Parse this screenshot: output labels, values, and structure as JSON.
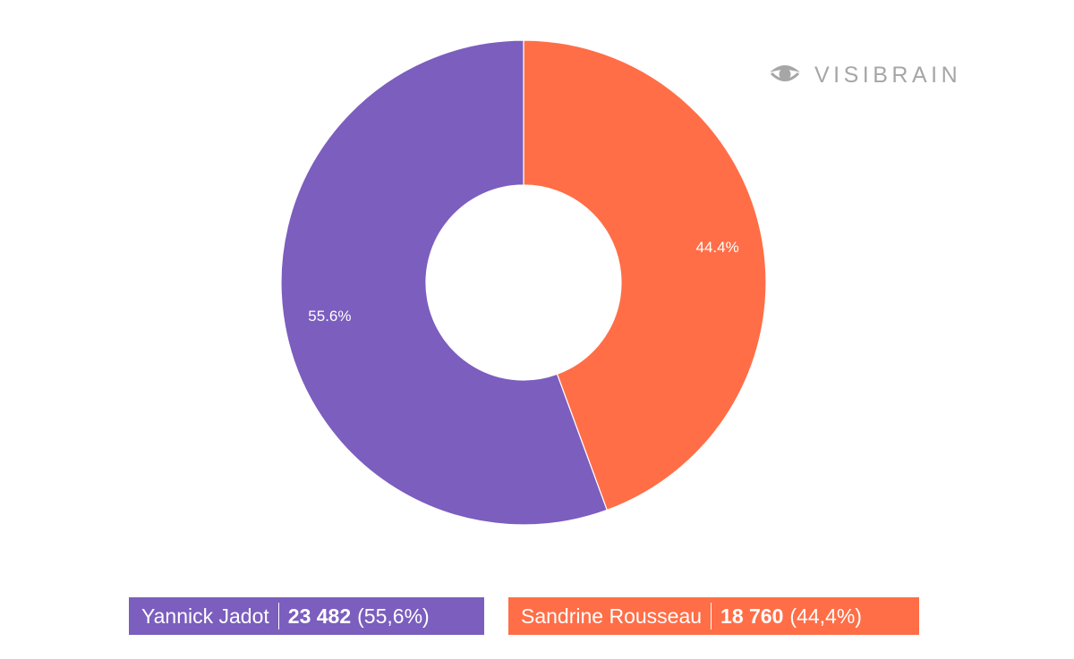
{
  "logo": {
    "text": "VISIBRAIN",
    "icon": "eye-icon",
    "color": "#a6a6a6"
  },
  "legend": [
    {
      "name": "Yannick Jadot",
      "count": "23 482",
      "percent": "(55,6%)",
      "color": "#7b5ebe"
    },
    {
      "name": "Sandrine Rousseau",
      "count": "18 760",
      "percent": "(44,4%)",
      "color": "#ff6e47"
    }
  ],
  "chart_data": {
    "type": "pie",
    "variant": "donut",
    "categories": [
      "Yannick Jadot",
      "Sandrine Rousseau"
    ],
    "values": [
      23482,
      18760
    ],
    "percent_labels": [
      "55.6%",
      "44.4%"
    ],
    "colors": [
      "#7b5ebe",
      "#ff6e47"
    ],
    "title": "",
    "legend_position": "bottom"
  }
}
